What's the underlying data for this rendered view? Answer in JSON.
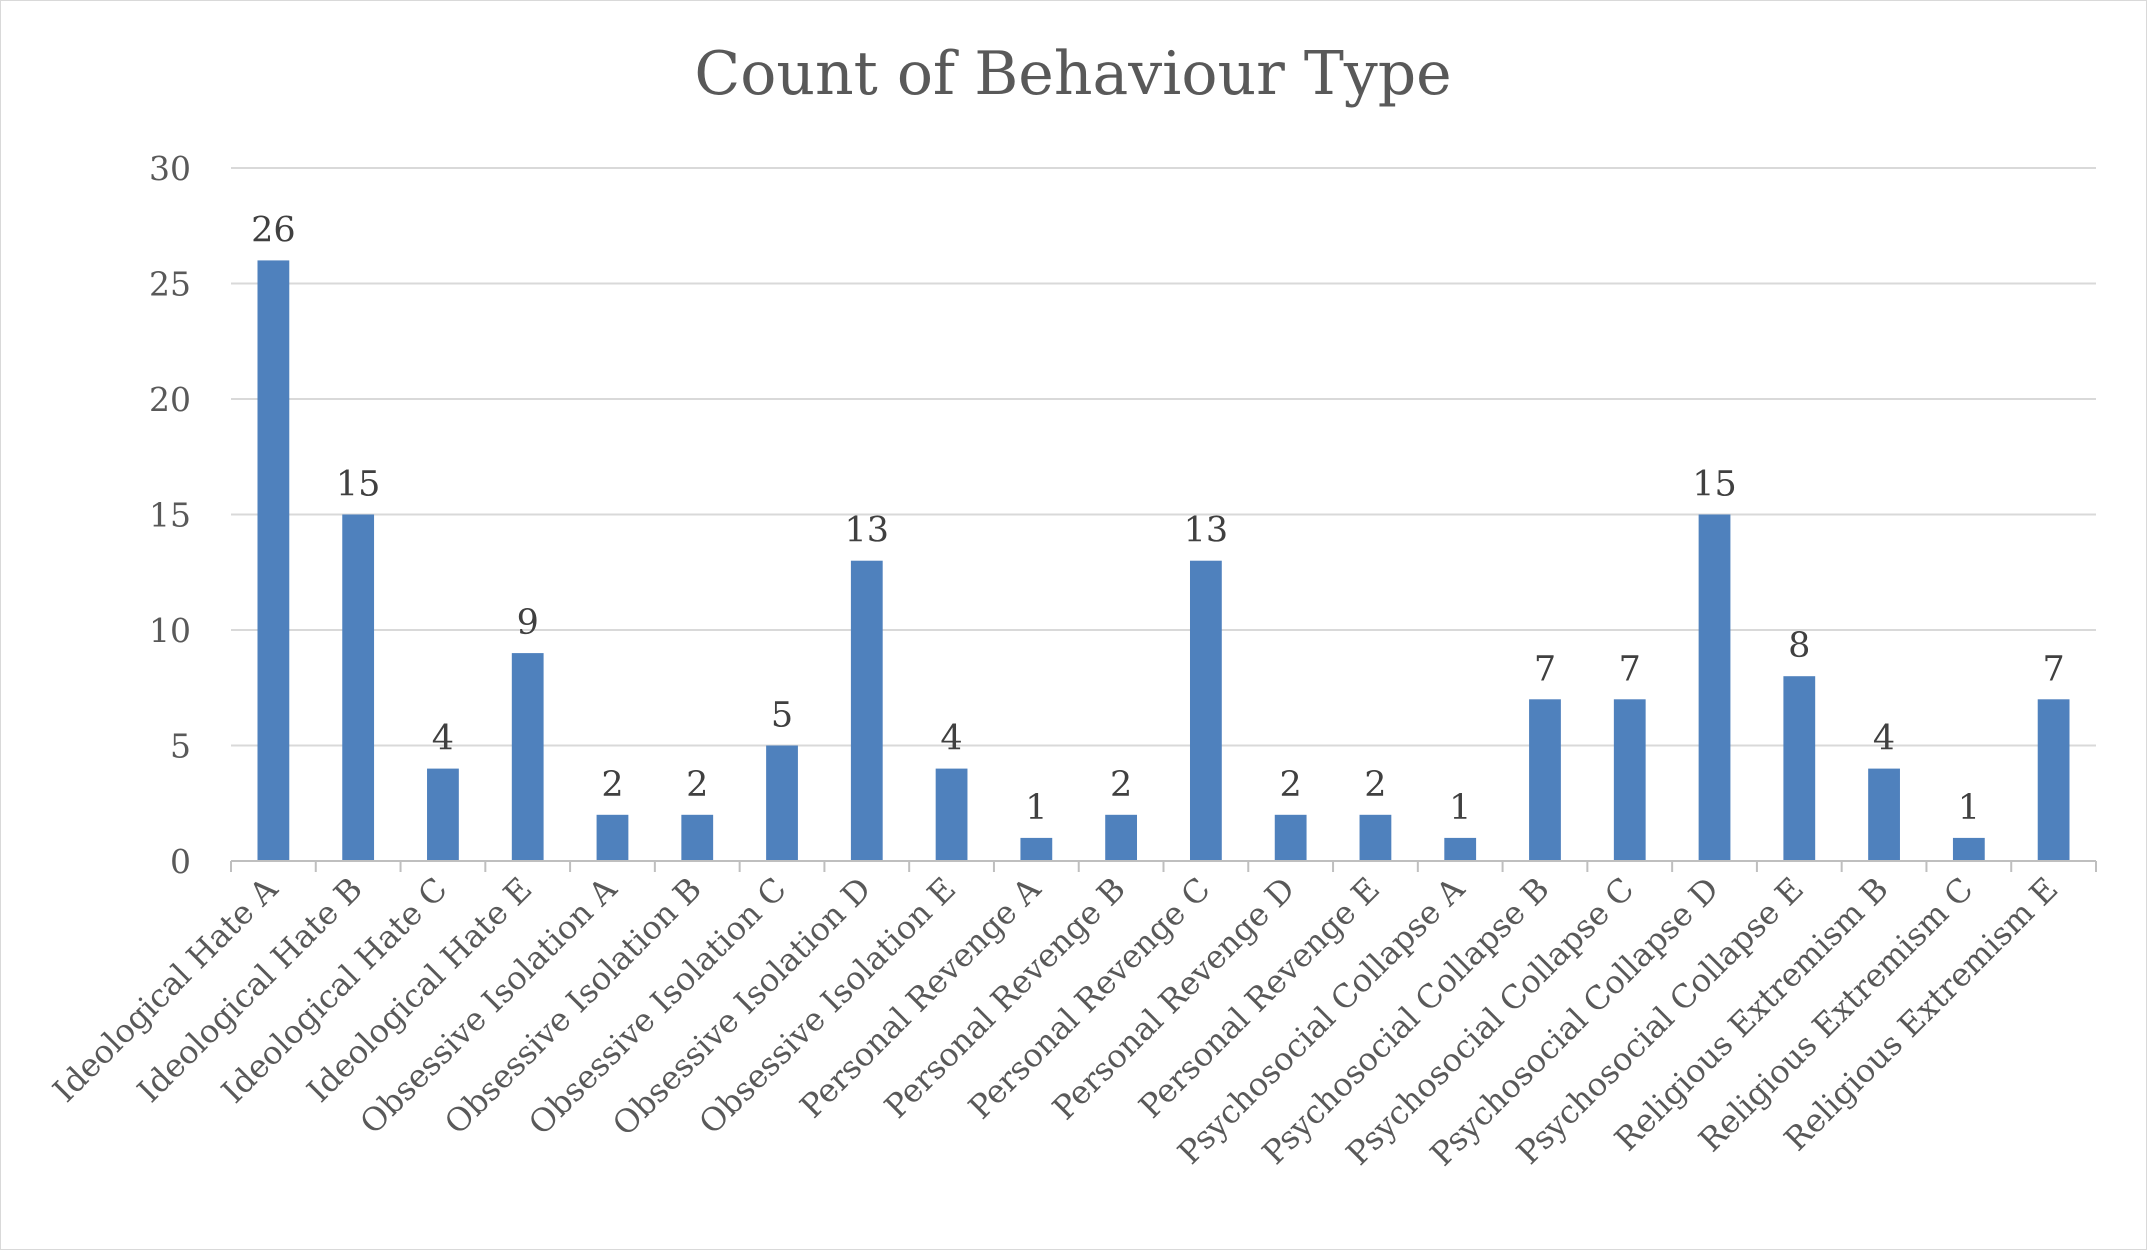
{
  "chart_data": {
    "type": "bar",
    "title": "Count of Behaviour Type",
    "xlabel": "",
    "ylabel": "",
    "ylim": [
      0,
      30
    ],
    "yticks": [
      0,
      5,
      10,
      15,
      20,
      25,
      30
    ],
    "grid": true,
    "legend": "none",
    "bar_color": "#4f81bd",
    "categories": [
      "Ideological Hate A",
      "Ideological Hate B",
      "Ideological Hate C",
      "Ideological Hate E",
      "Obsessive Isolation A",
      "Obsessive Isolation B",
      "Obsessive Isolation C",
      "Obsessive Isolation D",
      "Obsessive Isolation E",
      "Personal Revenge A",
      "Personal Revenge B",
      "Personal Revenge C",
      "Personal Revenge D",
      "Personal Revenge E",
      "Psychosocial Collapse A",
      "Psychosocial Collapse B",
      "Psychosocial Collapse C",
      "Psychosocial Collapse D",
      "Psychosocial Collapse E",
      "Religious Extremism B",
      "Religious Extremism C",
      "Religious Extremism E"
    ],
    "values": [
      26,
      15,
      4,
      9,
      2,
      2,
      5,
      13,
      4,
      1,
      2,
      13,
      2,
      2,
      1,
      7,
      7,
      15,
      8,
      4,
      1,
      7
    ]
  }
}
